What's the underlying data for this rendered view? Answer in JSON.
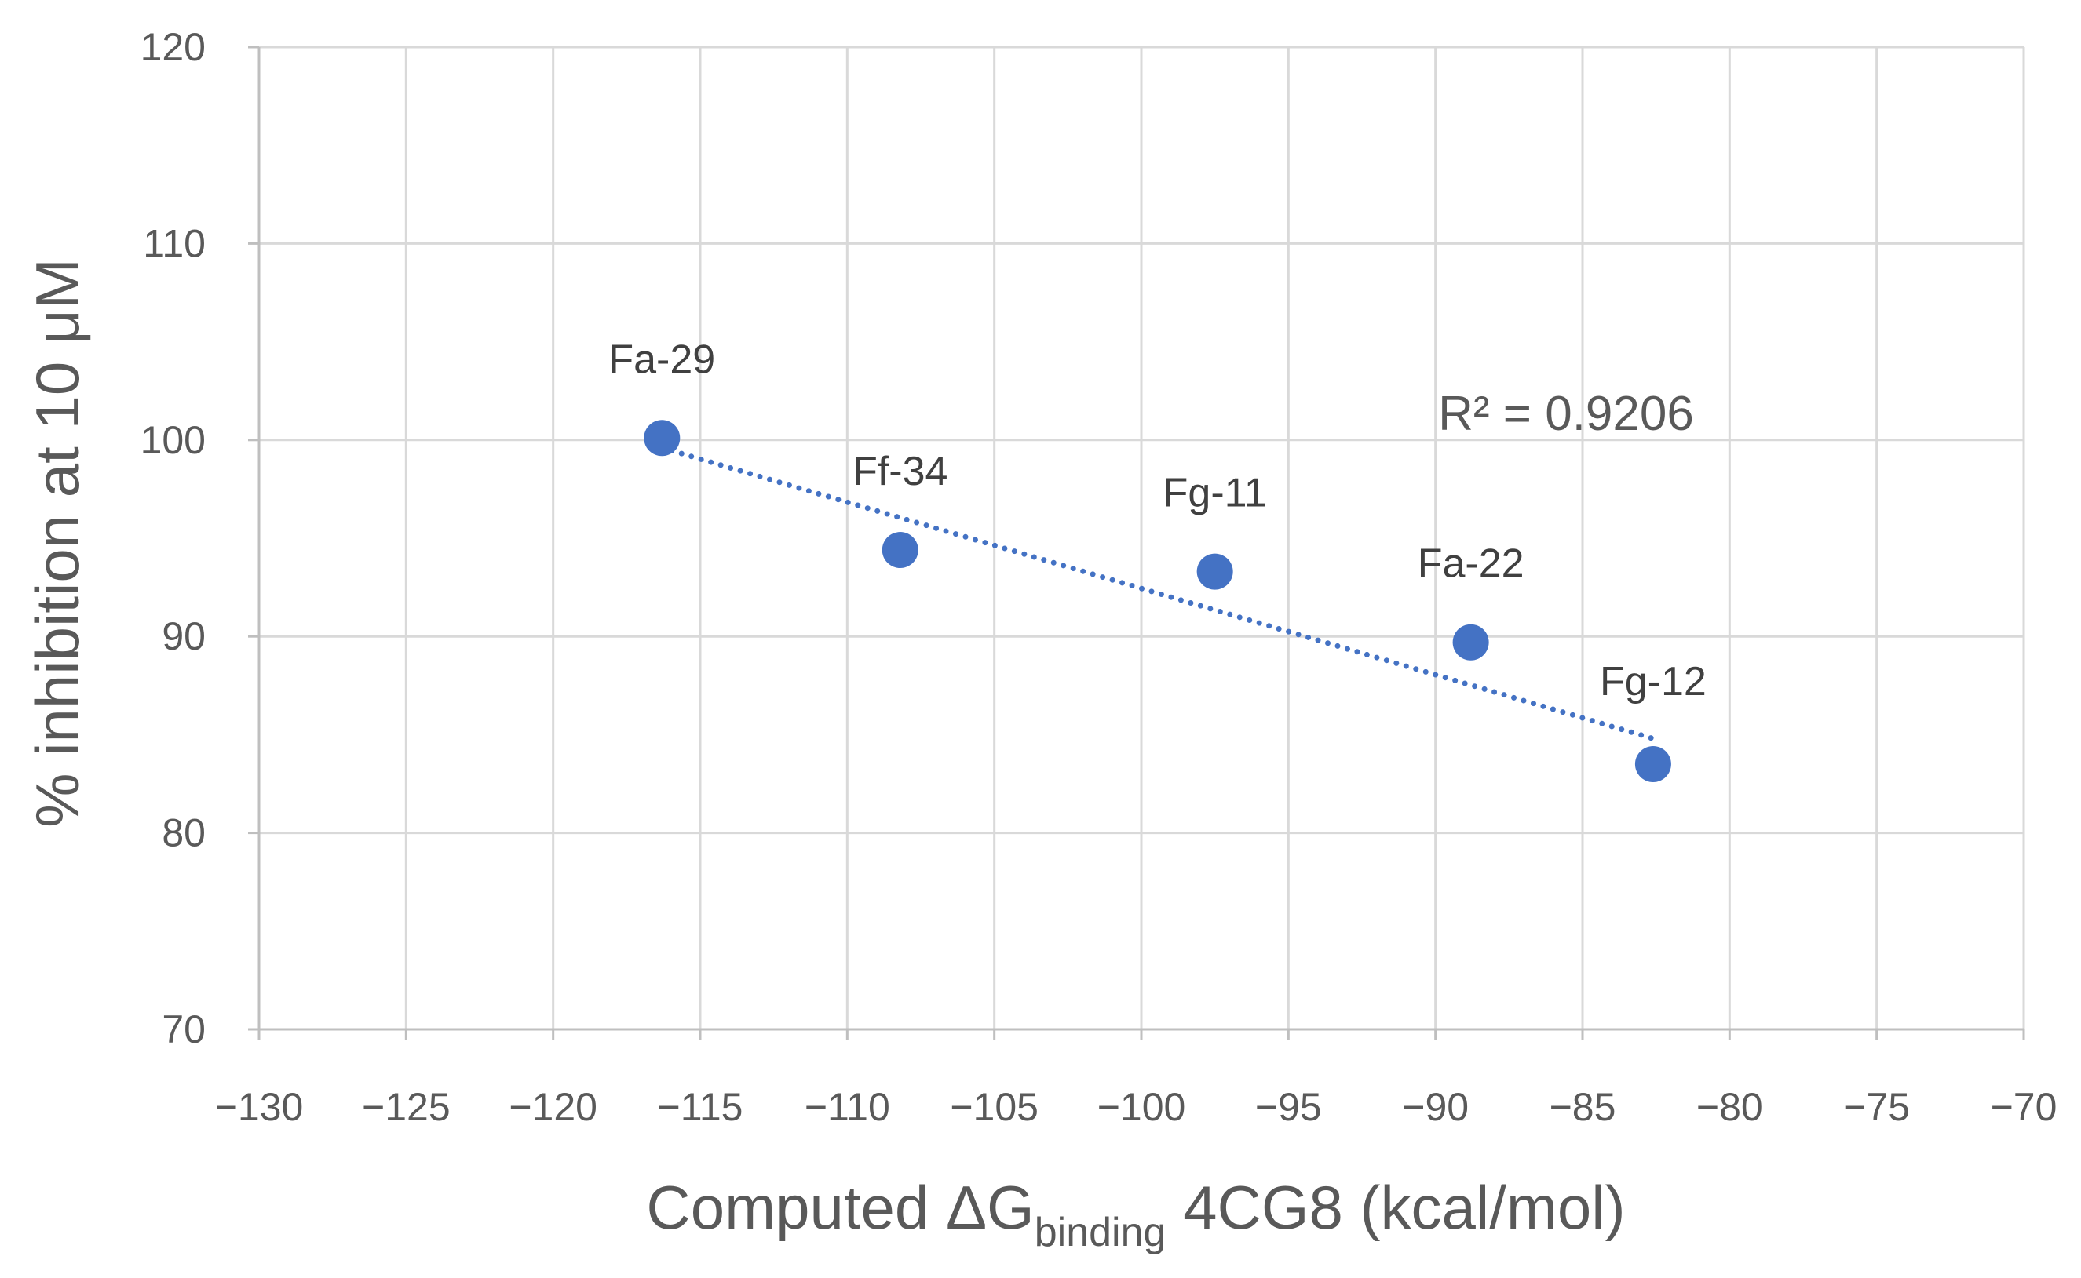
{
  "chart_data": {
    "type": "scatter",
    "title": "",
    "xlabel_main": "Computed ΔG",
    "xlabel_sub": "binding",
    "xlabel_tail": " 4CG8 (kcal/mol)",
    "ylabel": "% inhibition at 10 μM",
    "xlim": [
      -130,
      -70
    ],
    "ylim": [
      70,
      120
    ],
    "x_ticks": [
      -130,
      -125,
      -120,
      -115,
      -110,
      -105,
      -100,
      -95,
      -90,
      -85,
      -80,
      -75,
      -70
    ],
    "x_tick_labels": [
      "−130",
      "−125",
      "−120",
      "−115",
      "−110",
      "−105",
      "−100",
      "−95",
      "−90",
      "−85",
      "−80",
      "−75",
      "−70"
    ],
    "y_ticks": [
      70,
      80,
      90,
      100,
      110,
      120
    ],
    "y_tick_labels": [
      "70",
      "80",
      "90",
      "100",
      "110",
      "120"
    ],
    "grid": true,
    "series": [
      {
        "name": "compounds",
        "color": "#4472c4",
        "points": [
          {
            "label": "Fa-29",
            "x": -116.3,
            "y": 100.1
          },
          {
            "label": "Ff-34",
            "x": -108.2,
            "y": 94.4
          },
          {
            "label": "Fg-11",
            "x": -97.5,
            "y": 93.3
          },
          {
            "label": "Fa-22",
            "x": -88.8,
            "y": 89.7
          },
          {
            "label": "Fg-12",
            "x": -82.6,
            "y": 83.5
          }
        ]
      }
    ],
    "trendline": {
      "type": "linear",
      "style": "dotted",
      "color": "#4472c4",
      "x_start": -116.3,
      "y_start": 99.6,
      "x_end": -82.6,
      "y_end": 84.8,
      "r2_label": "R² = 0.9206"
    }
  }
}
